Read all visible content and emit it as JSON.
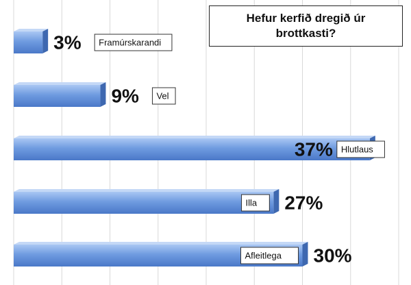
{
  "chart_data": {
    "type": "bar",
    "orientation": "horizontal",
    "title": "Hefur kerfið dregið úr brottkasti?",
    "categories": [
      "Framúrskarandi",
      "Vel",
      "Hlutlaus",
      "Illa",
      "Afleitlega"
    ],
    "values": [
      3,
      9,
      37,
      27,
      30
    ],
    "value_labels": [
      "3%",
      "9%",
      "37%",
      "27%",
      "30%"
    ],
    "color": "#6f9be0",
    "xlim": [
      0,
      40
    ],
    "xticks": [
      0,
      5,
      10,
      15,
      20,
      25,
      30,
      35,
      40
    ],
    "grid": true
  }
}
